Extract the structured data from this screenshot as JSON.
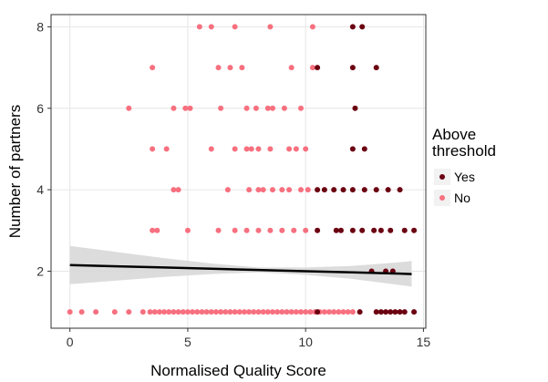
{
  "chart_data": {
    "type": "scatter",
    "title": "",
    "xlabel": "Normalised Quality Score",
    "ylabel": "Number of partners",
    "xlim": [
      -0.8,
      15.1
    ],
    "ylim": [
      0.6,
      8.3
    ],
    "x_ticks": [
      0,
      5,
      10,
      15
    ],
    "y_ticks": [
      2,
      4,
      6,
      8
    ],
    "grid": true,
    "legend": {
      "title_lines": [
        "Above",
        "threshold"
      ],
      "placement": "right",
      "entries": [
        {
          "label": "Yes",
          "color": "#6b0011"
        },
        {
          "label": "No",
          "color": "#f7707f"
        }
      ]
    },
    "series": [
      {
        "name": "Yes",
        "color": "#6b0011",
        "points": [
          [
            12.0,
            8
          ],
          [
            12.4,
            8
          ],
          [
            10.5,
            7
          ],
          [
            12.0,
            7
          ],
          [
            13.0,
            7
          ],
          [
            12.1,
            6
          ],
          [
            12.0,
            5
          ],
          [
            12.5,
            5
          ],
          [
            10.5,
            4
          ],
          [
            10.8,
            4
          ],
          [
            11.2,
            4
          ],
          [
            11.6,
            4
          ],
          [
            12.0,
            4
          ],
          [
            12.5,
            4
          ],
          [
            13.0,
            4
          ],
          [
            13.5,
            4
          ],
          [
            14.0,
            4
          ],
          [
            10.5,
            3
          ],
          [
            11.3,
            3
          ],
          [
            11.5,
            3
          ],
          [
            12.0,
            3
          ],
          [
            12.4,
            3
          ],
          [
            12.9,
            3
          ],
          [
            13.2,
            3
          ],
          [
            13.6,
            3
          ],
          [
            14.2,
            3
          ],
          [
            14.6,
            3
          ],
          [
            12.8,
            2
          ],
          [
            13.4,
            2
          ],
          [
            13.7,
            2
          ],
          [
            10.5,
            1
          ],
          [
            12.3,
            1
          ],
          [
            13.0,
            1
          ],
          [
            13.2,
            1
          ],
          [
            13.4,
            1
          ],
          [
            13.6,
            1
          ],
          [
            13.8,
            1
          ],
          [
            14.0,
            1
          ],
          [
            14.2,
            1
          ],
          [
            14.6,
            1
          ]
        ]
      },
      {
        "name": "No",
        "color": "#f7707f",
        "points": [
          [
            5.5,
            8
          ],
          [
            6.0,
            8
          ],
          [
            7.0,
            8
          ],
          [
            8.5,
            8
          ],
          [
            10.3,
            8
          ],
          [
            3.5,
            7
          ],
          [
            6.3,
            7
          ],
          [
            6.8,
            7
          ],
          [
            7.3,
            7
          ],
          [
            9.4,
            7
          ],
          [
            10.3,
            7
          ],
          [
            2.5,
            6
          ],
          [
            4.4,
            6
          ],
          [
            4.9,
            6
          ],
          [
            5.1,
            6
          ],
          [
            6.4,
            6
          ],
          [
            7.5,
            6
          ],
          [
            7.9,
            6
          ],
          [
            8.4,
            6
          ],
          [
            8.6,
            6
          ],
          [
            9.1,
            6
          ],
          [
            9.8,
            6
          ],
          [
            3.5,
            5
          ],
          [
            4.1,
            5
          ],
          [
            6.0,
            5
          ],
          [
            7.0,
            5
          ],
          [
            7.5,
            5
          ],
          [
            7.7,
            5
          ],
          [
            8.0,
            5
          ],
          [
            8.5,
            5
          ],
          [
            9.3,
            5
          ],
          [
            9.6,
            5
          ],
          [
            10.0,
            5
          ],
          [
            4.4,
            4
          ],
          [
            4.6,
            4
          ],
          [
            6.7,
            4
          ],
          [
            7.6,
            4
          ],
          [
            8.0,
            4
          ],
          [
            8.2,
            4
          ],
          [
            8.6,
            4
          ],
          [
            9.0,
            4
          ],
          [
            9.3,
            4
          ],
          [
            9.8,
            4
          ],
          [
            10.1,
            4
          ],
          [
            3.5,
            3
          ],
          [
            3.7,
            3
          ],
          [
            5.0,
            3
          ],
          [
            6.3,
            3
          ],
          [
            7.0,
            3
          ],
          [
            7.5,
            3
          ],
          [
            8.0,
            3
          ],
          [
            8.5,
            3
          ],
          [
            9.0,
            3
          ],
          [
            9.5,
            3
          ],
          [
            10.0,
            3
          ],
          [
            0.0,
            1
          ],
          [
            0.5,
            1
          ],
          [
            1.1,
            1
          ],
          [
            1.9,
            1
          ],
          [
            2.5,
            1
          ],
          [
            3.1,
            1
          ],
          [
            3.4,
            1
          ],
          [
            3.6,
            1
          ],
          [
            3.8,
            1
          ],
          [
            4.0,
            1
          ],
          [
            4.2,
            1
          ],
          [
            4.4,
            1
          ],
          [
            4.6,
            1
          ],
          [
            4.8,
            1
          ],
          [
            5.0,
            1
          ],
          [
            5.2,
            1
          ],
          [
            5.4,
            1
          ],
          [
            5.6,
            1
          ],
          [
            5.8,
            1
          ],
          [
            6.0,
            1
          ],
          [
            6.2,
            1
          ],
          [
            6.4,
            1
          ],
          [
            6.6,
            1
          ],
          [
            6.8,
            1
          ],
          [
            7.0,
            1
          ],
          [
            7.2,
            1
          ],
          [
            7.4,
            1
          ],
          [
            7.6,
            1
          ],
          [
            7.8,
            1
          ],
          [
            8.0,
            1
          ],
          [
            8.2,
            1
          ],
          [
            8.4,
            1
          ],
          [
            8.6,
            1
          ],
          [
            8.8,
            1
          ],
          [
            9.0,
            1
          ],
          [
            9.2,
            1
          ],
          [
            9.4,
            1
          ],
          [
            9.6,
            1
          ],
          [
            9.8,
            1
          ],
          [
            10.0,
            1
          ],
          [
            10.2,
            1
          ],
          [
            10.4,
            1
          ],
          [
            10.6,
            1
          ],
          [
            10.8,
            1
          ],
          [
            11.0,
            1
          ],
          [
            11.2,
            1
          ],
          [
            11.4,
            1
          ],
          [
            11.6,
            1
          ],
          [
            11.8,
            1
          ],
          [
            12.0,
            1
          ]
        ]
      }
    ],
    "trend": {
      "x": [
        0,
        2,
        4,
        6,
        8,
        10,
        12,
        14,
        14.5
      ],
      "y": [
        2.15,
        2.12,
        2.09,
        2.06,
        2.03,
        2.0,
        1.97,
        1.94,
        1.93
      ],
      "ci_low": [
        1.68,
        1.77,
        1.86,
        1.93,
        1.97,
        1.91,
        1.81,
        1.66,
        1.62
      ],
      "ci_high": [
        2.62,
        2.47,
        2.32,
        2.19,
        2.09,
        2.09,
        2.13,
        2.22,
        2.25
      ],
      "color": "#000000",
      "ci_color": "#d6d6d6"
    }
  }
}
